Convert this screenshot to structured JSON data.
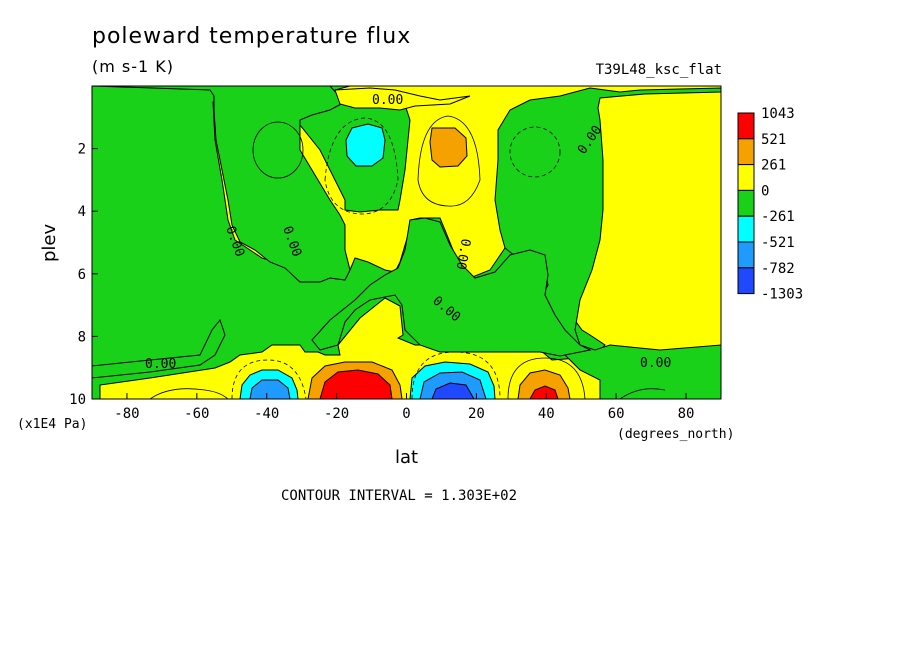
{
  "header": {
    "title": "poleward temperature flux",
    "units": "(m s-1 K)",
    "run": "T39L48_ksc_flat"
  },
  "footer": {
    "contour_interval": "CONTOUR INTERVAL = 1.303E+02"
  },
  "colors": {
    "red": "#ff0000",
    "orange": "#f5a100",
    "yellow": "#ffff00",
    "green": "#19d119",
    "cyan": "#00ffff",
    "blue": "#1f9bff",
    "dark_blue": "#1f48ff"
  },
  "chart_data": {
    "type": "heatmap",
    "title": "poleward temperature flux",
    "subtitle": "(m s-1 K)",
    "xlabel": "lat",
    "x_units": "(degrees_north)",
    "ylabel": "plev",
    "y_units": "(x1E4 Pa)",
    "xlim": [
      -90,
      90
    ],
    "ylim": [
      0,
      10
    ],
    "y_inverted": true,
    "x_ticks": [
      "-80",
      "-60",
      "-40",
      "-20",
      "0",
      "20",
      "40",
      "60",
      "80"
    ],
    "x_tick_values": [
      -80,
      -60,
      -40,
      -20,
      0,
      20,
      40,
      60,
      80
    ],
    "y_ticks": [
      "2",
      "4",
      "6",
      "8",
      "10"
    ],
    "y_tick_values": [
      2,
      4,
      6,
      8,
      10
    ],
    "colorbar": {
      "labels": [
        "1043",
        "521",
        "261",
        "0",
        "-261",
        "-521",
        "-782",
        "-1303"
      ],
      "colors": [
        "#ff0000",
        "#f5a100",
        "#ffff00",
        "#19d119",
        "#00ffff",
        "#1f9bff",
        "#1f48ff"
      ]
    },
    "contour_interval": 130.3,
    "contour_labels": [
      "0.00",
      "0.00",
      "0.00",
      "0.00",
      "0.00",
      "0.00",
      "0.00",
      "0.00"
    ],
    "extrema": [
      {
        "lat": -13,
        "plev": 9.7,
        "value": 1043
      },
      {
        "lat": 13,
        "plev": 9.6,
        "value": -1303
      },
      {
        "lat": -40,
        "plev": 9.7,
        "value": -782
      },
      {
        "lat": 38,
        "plev": 9.7,
        "value": 1043
      },
      {
        "lat": -12,
        "plev": 2.0,
        "value": -521
      },
      {
        "lat": 13,
        "plev": 1.9,
        "value": 521
      }
    ]
  }
}
